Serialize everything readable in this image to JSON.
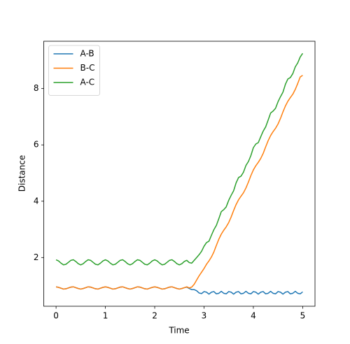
{
  "chart_data": {
    "type": "line",
    "xlabel": "Time",
    "ylabel": "Distance",
    "x": [
      0,
      0.05,
      0.1,
      0.15,
      0.2,
      0.25,
      0.3,
      0.35,
      0.4,
      0.45,
      0.5,
      0.55,
      0.6,
      0.65,
      0.7,
      0.75,
      0.8,
      0.85,
      0.9,
      0.95,
      1,
      1.05,
      1.1,
      1.15,
      1.2,
      1.25,
      1.3,
      1.35,
      1.4,
      1.45,
      1.5,
      1.55,
      1.6,
      1.65,
      1.7,
      1.75,
      1.8,
      1.85,
      1.9,
      1.95,
      2,
      2.05,
      2.1,
      2.15,
      2.2,
      2.25,
      2.3,
      2.35,
      2.4,
      2.45,
      2.5,
      2.55,
      2.6,
      2.65,
      2.7,
      2.75,
      2.8,
      2.85,
      2.9,
      2.95,
      3,
      3.05,
      3.1,
      3.15,
      3.2,
      3.25,
      3.3,
      3.35,
      3.4,
      3.45,
      3.5,
      3.55,
      3.6,
      3.65,
      3.7,
      3.75,
      3.8,
      3.85,
      3.9,
      3.95,
      4,
      4.05,
      4.1,
      4.15,
      4.2,
      4.25,
      4.3,
      4.35,
      4.4,
      4.45,
      4.5,
      4.55,
      4.6,
      4.65,
      4.7,
      4.75,
      4.8,
      4.85,
      4.9,
      4.95,
      5
    ],
    "series": [
      {
        "name": "A-B",
        "color": "#1f77b4",
        "values": [
          0.96,
          0.94,
          0.91,
          0.88,
          0.89,
          0.92,
          0.95,
          0.96,
          0.93,
          0.9,
          0.88,
          0.9,
          0.93,
          0.96,
          0.95,
          0.92,
          0.89,
          0.88,
          0.91,
          0.94,
          0.96,
          0.94,
          0.91,
          0.88,
          0.89,
          0.92,
          0.95,
          0.96,
          0.93,
          0.9,
          0.88,
          0.9,
          0.93,
          0.96,
          0.95,
          0.92,
          0.89,
          0.88,
          0.91,
          0.94,
          0.96,
          0.94,
          0.91,
          0.88,
          0.89,
          0.92,
          0.95,
          0.96,
          0.93,
          0.9,
          0.88,
          0.9,
          0.93,
          0.95,
          0.9,
          0.86,
          0.86,
          0.82,
          0.74,
          0.72,
          0.79,
          0.77,
          0.7,
          0.77,
          0.79,
          0.71,
          0.73,
          0.8,
          0.73,
          0.71,
          0.79,
          0.77,
          0.7,
          0.77,
          0.79,
          0.71,
          0.73,
          0.8,
          0.73,
          0.71,
          0.79,
          0.77,
          0.7,
          0.77,
          0.79,
          0.71,
          0.73,
          0.8,
          0.73,
          0.71,
          0.79,
          0.77,
          0.7,
          0.77,
          0.79,
          0.71,
          0.73,
          0.8,
          0.73,
          0.71,
          0.78
        ]
      },
      {
        "name": "B-C",
        "color": "#ff7f0e",
        "values": [
          0.96,
          0.94,
          0.91,
          0.88,
          0.89,
          0.92,
          0.95,
          0.96,
          0.93,
          0.9,
          0.88,
          0.9,
          0.93,
          0.96,
          0.95,
          0.92,
          0.89,
          0.88,
          0.91,
          0.94,
          0.96,
          0.94,
          0.91,
          0.88,
          0.89,
          0.92,
          0.95,
          0.96,
          0.93,
          0.9,
          0.88,
          0.9,
          0.93,
          0.96,
          0.95,
          0.92,
          0.89,
          0.88,
          0.91,
          0.94,
          0.96,
          0.94,
          0.91,
          0.88,
          0.89,
          0.92,
          0.95,
          0.96,
          0.93,
          0.9,
          0.88,
          0.9,
          0.93,
          0.96,
          0.92,
          0.95,
          1.05,
          1.2,
          1.35,
          1.48,
          1.61,
          1.76,
          1.88,
          2.02,
          2.2,
          2.43,
          2.65,
          2.83,
          2.97,
          3.09,
          3.24,
          3.44,
          3.67,
          3.88,
          4.05,
          4.18,
          4.3,
          4.47,
          4.68,
          4.91,
          5.11,
          5.26,
          5.38,
          5.52,
          5.7,
          5.93,
          6.15,
          6.33,
          6.47,
          6.59,
          6.74,
          6.94,
          7.17,
          7.38,
          7.55,
          7.68,
          7.8,
          7.97,
          8.18,
          8.41,
          8.47
        ]
      },
      {
        "name": "A-C",
        "color": "#2ca02c",
        "values": [
          1.92,
          1.88,
          1.8,
          1.74,
          1.76,
          1.83,
          1.9,
          1.92,
          1.86,
          1.78,
          1.74,
          1.78,
          1.86,
          1.92,
          1.9,
          1.83,
          1.76,
          1.74,
          1.8,
          1.88,
          1.92,
          1.88,
          1.8,
          1.74,
          1.76,
          1.83,
          1.9,
          1.92,
          1.86,
          1.78,
          1.74,
          1.78,
          1.86,
          1.92,
          1.9,
          1.83,
          1.76,
          1.74,
          1.8,
          1.88,
          1.92,
          1.88,
          1.8,
          1.74,
          1.76,
          1.83,
          1.9,
          1.92,
          1.86,
          1.78,
          1.74,
          1.78,
          1.86,
          1.9,
          1.82,
          1.8,
          1.9,
          2.0,
          2.1,
          2.22,
          2.4,
          2.53,
          2.58,
          2.79,
          2.99,
          3.14,
          3.38,
          3.63,
          3.7,
          3.8,
          4.03,
          4.21,
          4.37,
          4.65,
          4.84,
          4.89,
          5.03,
          5.27,
          5.41,
          5.62,
          5.9,
          6.03,
          6.08,
          6.29,
          6.49,
          6.64,
          6.88,
          7.13,
          7.2,
          7.3,
          7.53,
          7.71,
          7.87,
          8.15,
          8.34,
          8.39,
          8.53,
          8.77,
          8.91,
          9.12,
          9.25
        ]
      }
    ],
    "xlim": [
      -0.25,
      5.25
    ],
    "ylim": [
      0.27,
      9.68
    ],
    "xticks": [
      0,
      1,
      2,
      3,
      4,
      5
    ],
    "yticks": [
      2,
      4,
      6,
      8
    ],
    "legend": "upper left"
  }
}
